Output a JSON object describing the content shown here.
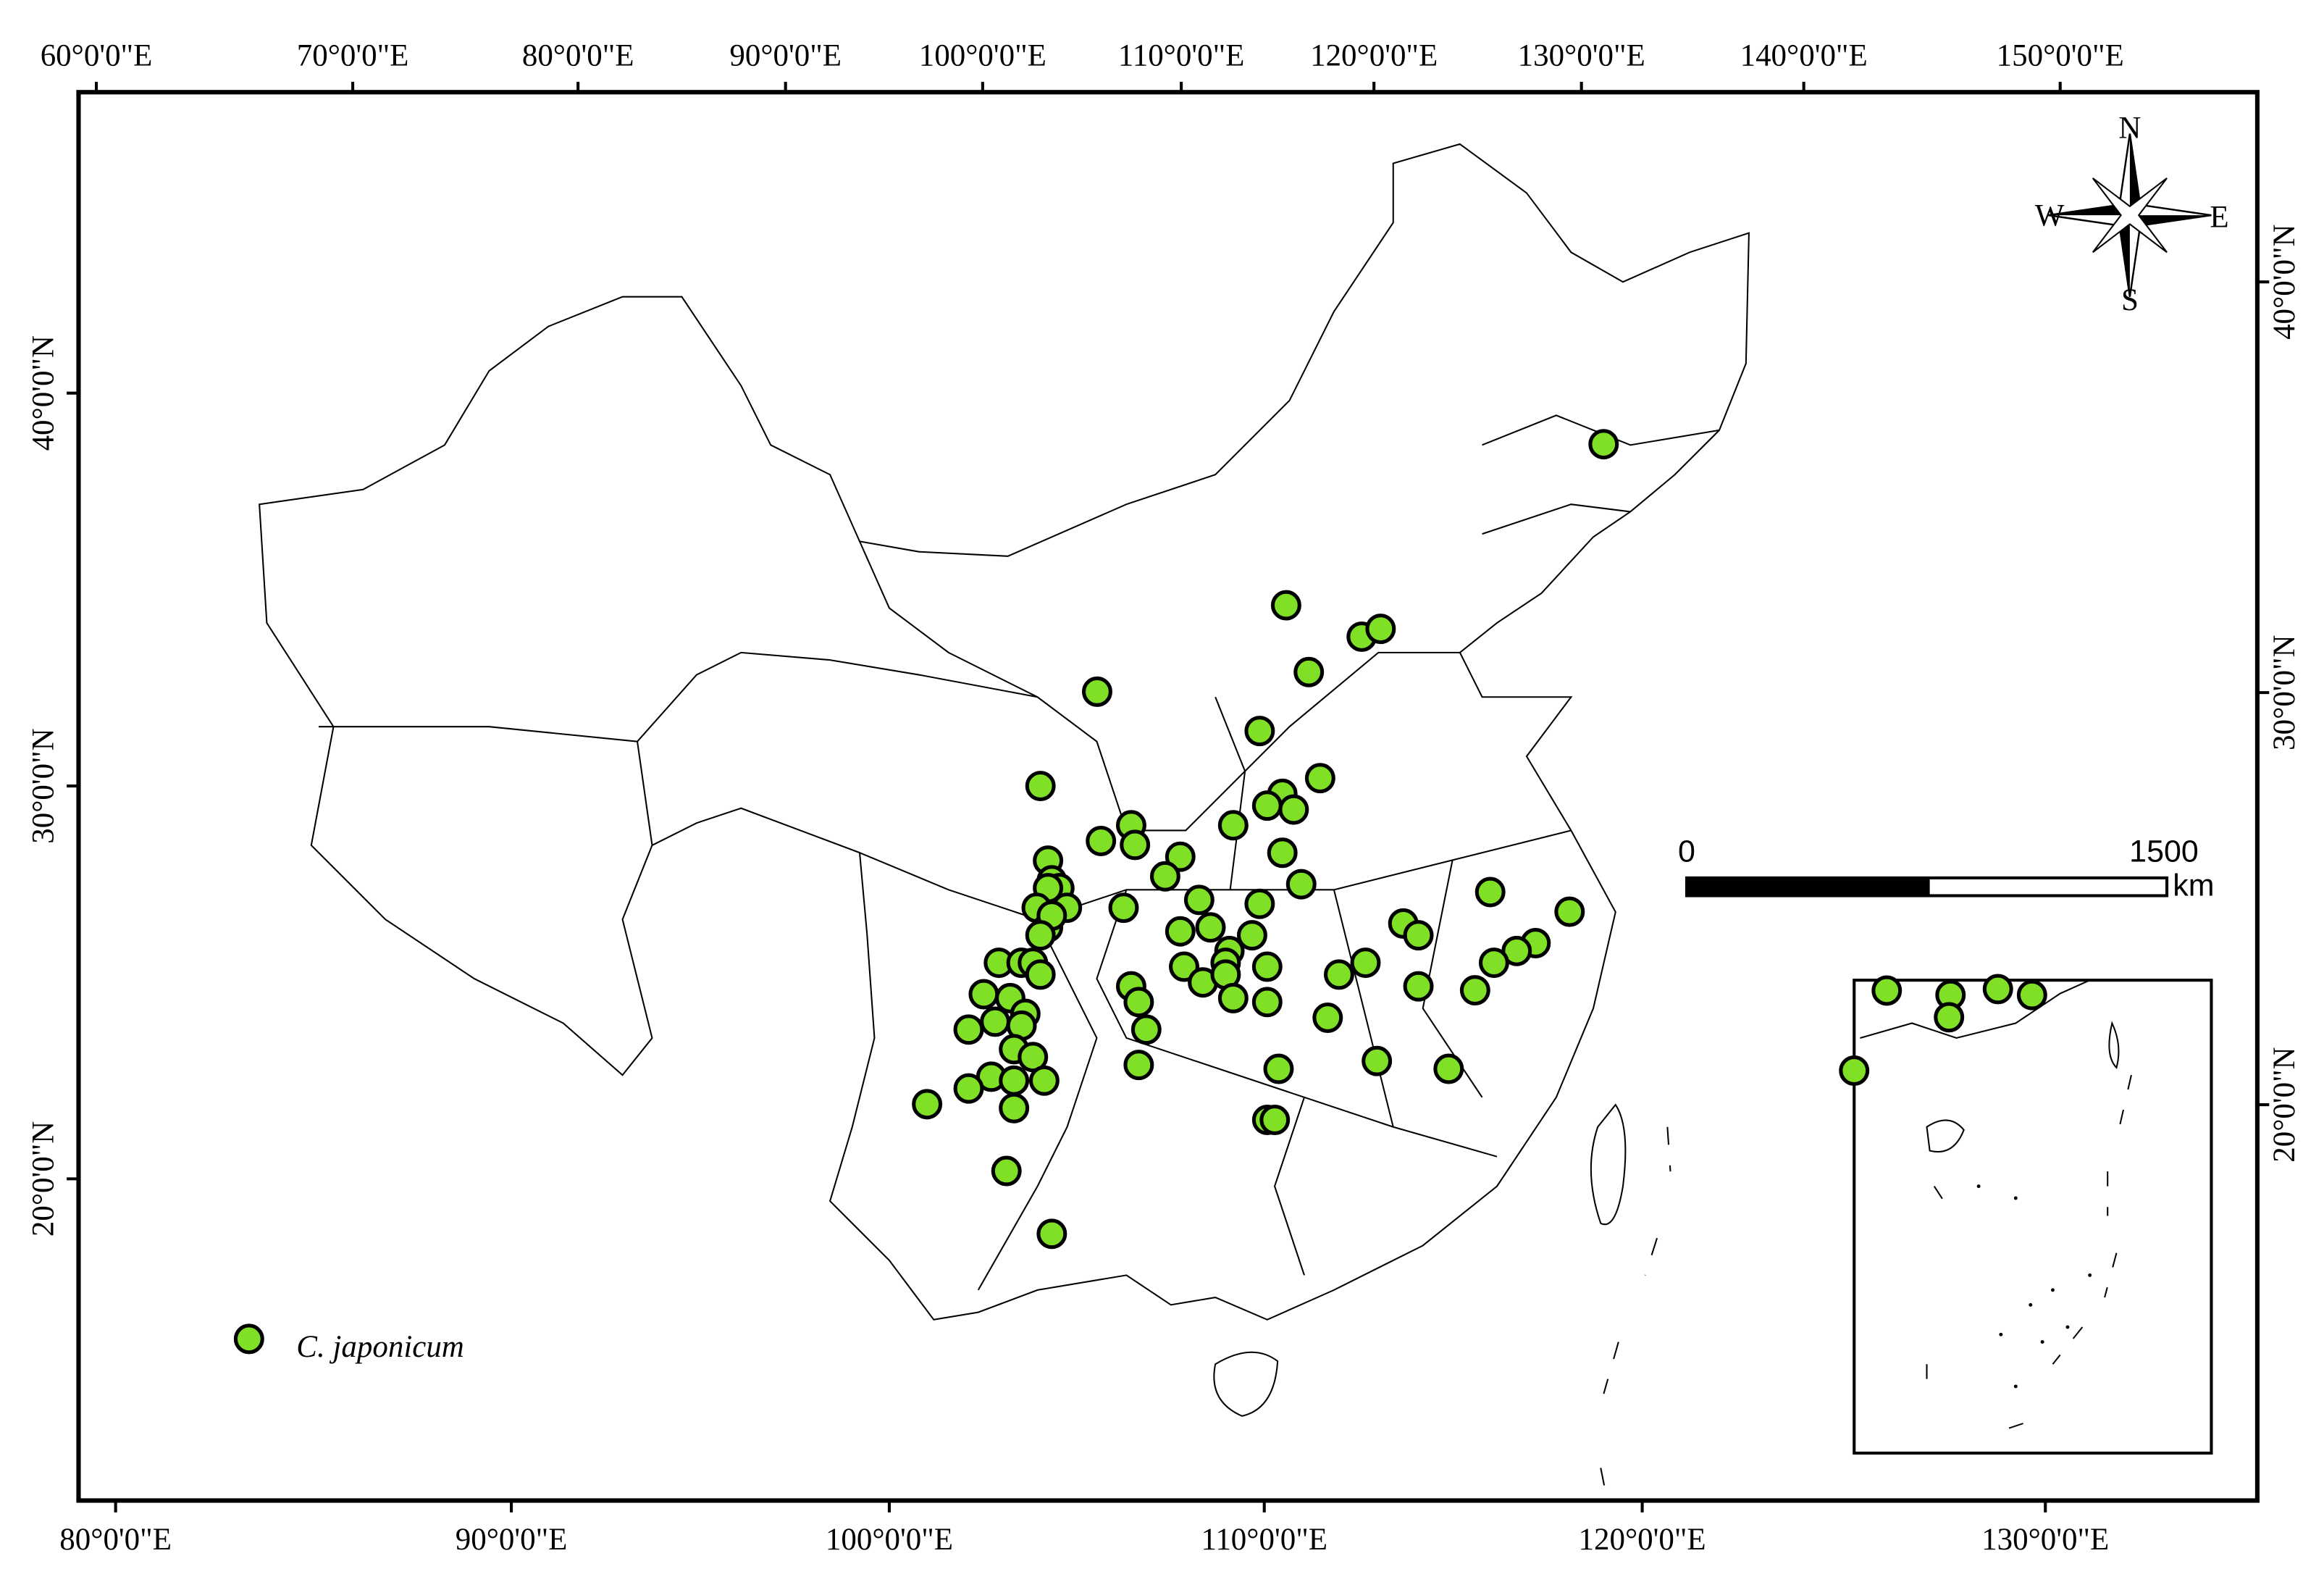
{
  "map": {
    "top_labels": [
      "60°0'0\"E",
      "70°0'0\"E",
      "80°0'0\"E",
      "90°0'0\"E",
      "100°0'0\"E",
      "110°0'0\"E",
      "120°0'0\"E",
      "130°0'0\"E",
      "140°0'0\"E",
      "150°0'0\"E"
    ],
    "bottom_labels": [
      "80°0'0\"E",
      "90°0'0\"E",
      "100°0'0\"E",
      "110°0'0\"E",
      "120°0'0\"E",
      "130°0'0\"E"
    ],
    "left_labels": [
      "40°0'0\"N",
      "30°0'0\"N",
      "20°0'0\"N"
    ],
    "right_labels": [
      "40°0'0\"N",
      "30°0'0\"N",
      "20°0'0\"N"
    ],
    "compass": {
      "n": "N",
      "e": "E",
      "s": "S",
      "w": "W"
    },
    "scale_bar": {
      "start": 0,
      "end": 1500,
      "unit": "km"
    },
    "legend": "C. japonicum",
    "points": [
      [
        118.9,
        38.7
      ],
      [
        110.5,
        34.6
      ],
      [
        112.5,
        33.8
      ],
      [
        113.0,
        34.0
      ],
      [
        111.1,
        32.9
      ],
      [
        105.5,
        32.4
      ],
      [
        109.8,
        31.4
      ],
      [
        104.0,
        30.0
      ],
      [
        111.4,
        30.2
      ],
      [
        110.4,
        29.8
      ],
      [
        110.0,
        29.5
      ],
      [
        110.7,
        29.4
      ],
      [
        109.1,
        29.0
      ],
      [
        106.4,
        29.0
      ],
      [
        105.6,
        28.6
      ],
      [
        106.5,
        28.5
      ],
      [
        107.7,
        28.2
      ],
      [
        110.4,
        28.3
      ],
      [
        104.2,
        28.1
      ],
      [
        104.3,
        27.6
      ],
      [
        107.3,
        27.7
      ],
      [
        110.9,
        27.5
      ],
      [
        104.5,
        27.4
      ],
      [
        104.2,
        27.4
      ],
      [
        103.9,
        26.9
      ],
      [
        108.2,
        27.1
      ],
      [
        106.2,
        26.9
      ],
      [
        104.7,
        26.9
      ],
      [
        109.8,
        27.0
      ],
      [
        104.2,
        26.4
      ],
      [
        104.3,
        26.7
      ],
      [
        104.0,
        26.2
      ],
      [
        107.7,
        26.3
      ],
      [
        108.5,
        26.4
      ],
      [
        109.6,
        26.2
      ],
      [
        113.6,
        26.5
      ],
      [
        114.0,
        26.2
      ],
      [
        115.9,
        27.3
      ],
      [
        118.0,
        26.8
      ],
      [
        117.1,
        26.0
      ],
      [
        116.6,
        25.8
      ],
      [
        116.0,
        25.5
      ],
      [
        102.9,
        25.5
      ],
      [
        103.5,
        25.5
      ],
      [
        103.8,
        25.5
      ],
      [
        109.0,
        25.8
      ],
      [
        108.9,
        25.5
      ],
      [
        110.0,
        25.4
      ],
      [
        106.4,
        24.9
      ],
      [
        107.8,
        25.4
      ],
      [
        108.3,
        25.0
      ],
      [
        112.6,
        25.5
      ],
      [
        111.9,
        25.2
      ],
      [
        102.5,
        24.7
      ],
      [
        103.2,
        24.6
      ],
      [
        104.0,
        25.2
      ],
      [
        108.9,
        25.2
      ],
      [
        114.0,
        24.9
      ],
      [
        115.5,
        24.8
      ],
      [
        106.6,
        24.5
      ],
      [
        109.1,
        24.6
      ],
      [
        110.0,
        24.5
      ],
      [
        102.1,
        23.8
      ],
      [
        102.8,
        24.0
      ],
      [
        103.6,
        24.2
      ],
      [
        103.5,
        23.9
      ],
      [
        111.6,
        24.1
      ],
      [
        106.8,
        23.8
      ],
      [
        103.3,
        23.3
      ],
      [
        103.8,
        23.1
      ],
      [
        106.6,
        22.9
      ],
      [
        112.9,
        23.0
      ],
      [
        114.8,
        22.8
      ],
      [
        110.3,
        22.8
      ],
      [
        102.7,
        22.6
      ],
      [
        103.3,
        22.5
      ],
      [
        104.1,
        22.5
      ],
      [
        102.1,
        22.3
      ],
      [
        101.0,
        21.9
      ],
      [
        103.3,
        21.8
      ],
      [
        110.0,
        21.5
      ],
      [
        110.2,
        21.5
      ],
      [
        103.1,
        20.2
      ],
      [
        104.3,
        18.6
      ]
    ]
  }
}
